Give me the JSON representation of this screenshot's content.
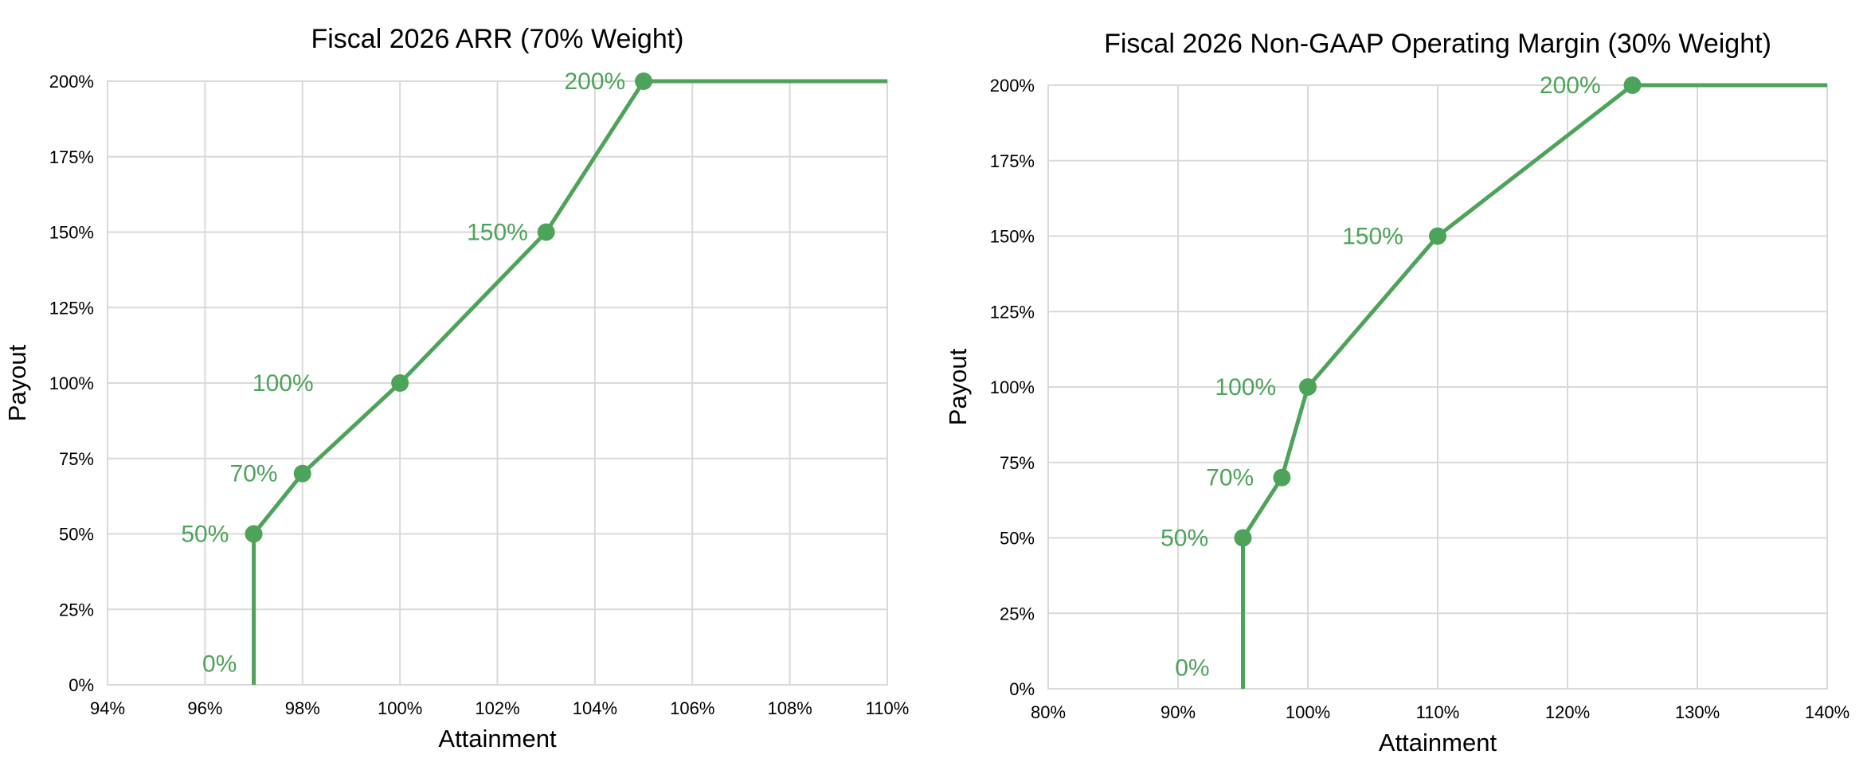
{
  "chart_data": [
    {
      "type": "line",
      "title": "Fiscal 2026 ARR (70% Weight)",
      "xlabel": "Attainment",
      "ylabel": "Payout",
      "xlim": [
        94,
        110
      ],
      "ylim": [
        0,
        200
      ],
      "x_ticks": [
        94,
        96,
        98,
        100,
        102,
        104,
        106,
        108,
        110
      ],
      "x_tick_labels": [
        "94%",
        "96%",
        "98%",
        "100%",
        "102%",
        "104%",
        "106%",
        "108%",
        "110%"
      ],
      "y_ticks": [
        0,
        25,
        50,
        75,
        100,
        125,
        150,
        175,
        200
      ],
      "y_tick_labels": [
        "0%",
        "25%",
        "50%",
        "75%",
        "100%",
        "125%",
        "150%",
        "175%",
        "200%"
      ],
      "grid": true,
      "color": "#4ea35a",
      "line_points": [
        {
          "x": 97,
          "y": 0
        },
        {
          "x": 97,
          "y": 50
        },
        {
          "x": 98,
          "y": 70
        },
        {
          "x": 100,
          "y": 100
        },
        {
          "x": 103,
          "y": 150
        },
        {
          "x": 105,
          "y": 200
        },
        {
          "x": 110,
          "y": 200
        }
      ],
      "markers": [
        {
          "x": 97,
          "y": 50
        },
        {
          "x": 98,
          "y": 70
        },
        {
          "x": 100,
          "y": 100
        },
        {
          "x": 103,
          "y": 150
        },
        {
          "x": 105,
          "y": 200
        }
      ],
      "data_labels": [
        {
          "text": "0%",
          "x": 96.3,
          "y": 7
        },
        {
          "text": "50%",
          "x": 96.0,
          "y": 50
        },
        {
          "text": "70%",
          "x": 97.0,
          "y": 70
        },
        {
          "text": "100%",
          "x": 97.6,
          "y": 100
        },
        {
          "text": "150%",
          "x": 102.0,
          "y": 150
        },
        {
          "text": "200%",
          "x": 104.0,
          "y": 200
        }
      ]
    },
    {
      "type": "line",
      "title": "Fiscal 2026 Non-GAAP Operating Margin (30% Weight)",
      "xlabel": "Attainment",
      "ylabel": "Payout",
      "xlim": [
        80,
        140
      ],
      "ylim": [
        0,
        200
      ],
      "x_ticks": [
        80,
        90,
        100,
        110,
        120,
        130,
        140
      ],
      "x_tick_labels": [
        "80%",
        "90%",
        "100%",
        "110%",
        "120%",
        "130%",
        "140%"
      ],
      "y_ticks": [
        0,
        25,
        50,
        75,
        100,
        125,
        150,
        175,
        200
      ],
      "y_tick_labels": [
        "0%",
        "25%",
        "50%",
        "75%",
        "100%",
        "125%",
        "150%",
        "175%",
        "200%"
      ],
      "grid": true,
      "color": "#4ea35a",
      "line_points": [
        {
          "x": 95,
          "y": 0
        },
        {
          "x": 95,
          "y": 50
        },
        {
          "x": 98,
          "y": 70
        },
        {
          "x": 100,
          "y": 100
        },
        {
          "x": 110,
          "y": 150
        },
        {
          "x": 125,
          "y": 200
        },
        {
          "x": 140,
          "y": 200
        }
      ],
      "markers": [
        {
          "x": 95,
          "y": 50
        },
        {
          "x": 98,
          "y": 70
        },
        {
          "x": 100,
          "y": 100
        },
        {
          "x": 110,
          "y": 150
        },
        {
          "x": 125,
          "y": 200
        }
      ],
      "data_labels": [
        {
          "text": "0%",
          "x": 91.1,
          "y": 7
        },
        {
          "text": "50%",
          "x": 90.5,
          "y": 50
        },
        {
          "text": "70%",
          "x": 94.0,
          "y": 70
        },
        {
          "text": "100%",
          "x": 95.2,
          "y": 100
        },
        {
          "text": "150%",
          "x": 105.0,
          "y": 150
        },
        {
          "text": "200%",
          "x": 120.2,
          "y": 200
        }
      ]
    }
  ]
}
